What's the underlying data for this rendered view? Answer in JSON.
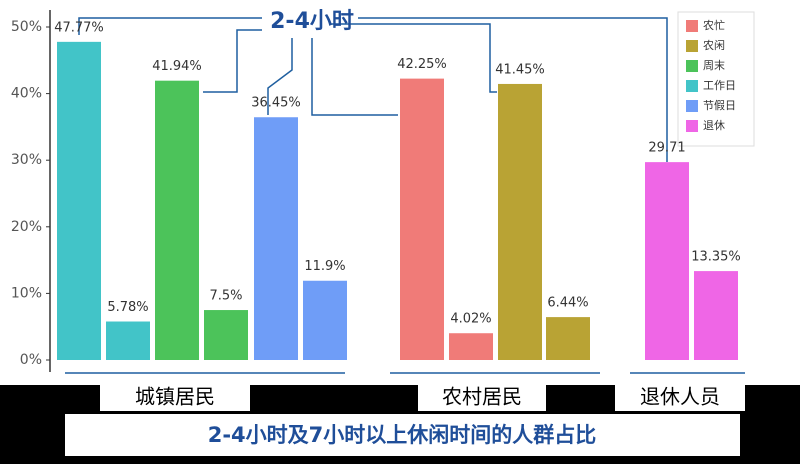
{
  "chart_data": {
    "type": "bar",
    "annotation": "2-4小时",
    "caption": "2-4小时及7小时以上休闲时间的人群占比",
    "groups": [
      "城镇居民",
      "农村居民",
      "退休人员"
    ],
    "ylim": [
      0,
      50
    ],
    "yticks": [
      {
        "value": 0,
        "label": "0%"
      },
      {
        "value": 10,
        "label": "10%"
      },
      {
        "value": 20,
        "label": "20%"
      },
      {
        "value": 30,
        "label": "30%"
      },
      {
        "value": 40,
        "label": "40%"
      },
      {
        "value": 50,
        "label": "50%"
      }
    ],
    "series": [
      {
        "name": "农忙",
        "color": "#f07b78",
        "values": [
          42.25,
          4.02
        ],
        "value_labels": [
          "42.25%",
          "4.02%"
        ]
      },
      {
        "name": "农闲",
        "color": "#b9a334",
        "values": [
          41.45,
          6.44
        ],
        "value_labels": [
          "41.45%",
          "6.44%"
        ]
      },
      {
        "name": "周末",
        "color": "#4cc35a",
        "values": [
          41.94,
          7.5
        ],
        "value_labels": [
          "41.94%",
          "7.5%"
        ]
      },
      {
        "name": "工作日",
        "color": "#42c4c8",
        "values": [
          47.77,
          5.78
        ],
        "value_labels": [
          "47.77%",
          "5.78%"
        ]
      },
      {
        "name": "节假日",
        "color": "#6f9df7",
        "values": [
          36.45,
          11.9
        ],
        "value_labels": [
          "36.45%",
          "11.9%"
        ]
      },
      {
        "name": "退休",
        "color": "#ef66e6",
        "values": [
          29.71,
          13.35
        ],
        "value_labels": [
          "29.71",
          "13.35%"
        ]
      }
    ]
  }
}
